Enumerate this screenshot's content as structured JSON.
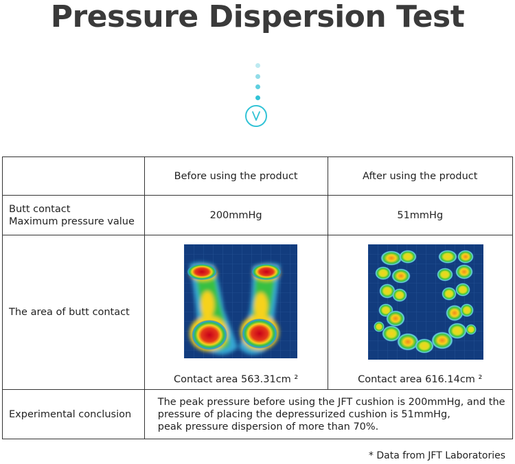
{
  "page": {
    "title": "Pressure Dispersion Test",
    "accent_color": "#32c3d6",
    "scroll_dots": [
      "#bdeaf1",
      "#92dce8",
      "#5fcfdf",
      "#32c3d6"
    ],
    "chevron_icon": "chevron-down-icon"
  },
  "table": {
    "header": {
      "empty": "",
      "before": "Before using the product",
      "after": "After using the product"
    },
    "pressure_row": {
      "label_line1": "Butt contact",
      "label_line2": "Maximum pressure value",
      "before_value": "200mmHg",
      "after_value": "51mmHg"
    },
    "area_row": {
      "label": "The area of butt contact",
      "before_image": "pressure-heatmap-before",
      "after_image": "pressure-heatmap-after",
      "before_caption": "Contact area 563.31cm ²",
      "after_caption": "Contact area 616.14cm ²"
    },
    "conclusion_row": {
      "label": "Experimental conclusion",
      "line1": "The peak pressure before using the JFT cushion is 200mmHg, and the",
      "line2": "pressure of placing the depressurized cushion is 51mmHg,",
      "line3": "peak pressure dispersion of more than 70%."
    }
  },
  "footnote": "* Data from JFT Laboratories"
}
